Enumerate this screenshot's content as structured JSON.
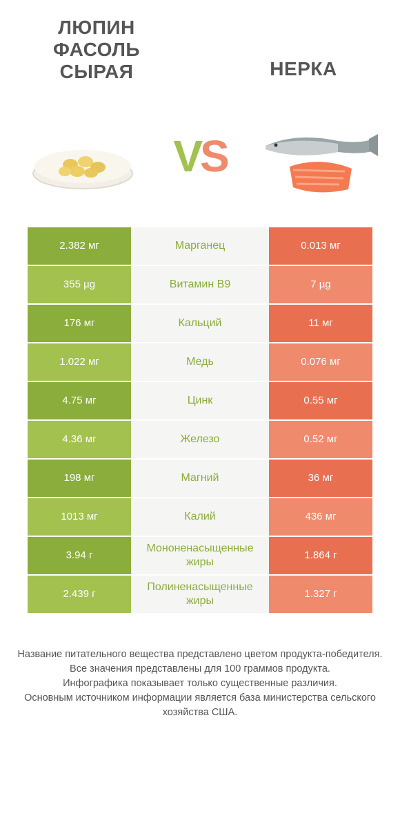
{
  "colors": {
    "green_dark": "#8aad3b",
    "green_light": "#a2c14f",
    "orange_dark": "#e96f51",
    "orange_light": "#ef8a6d",
    "mid_bg": "#f5f5f3",
    "mid_text_green": "#8aad3b",
    "vs_v": "#a2c14f",
    "vs_s": "#ef8a6d"
  },
  "header": {
    "left_title": "ЛЮПИН ФАСОЛЬ СЫРАЯ",
    "right_title": "НЕРКА",
    "vs_v": "V",
    "vs_s": "S"
  },
  "rows": [
    {
      "left": "2.382 мг",
      "mid": "Марганец",
      "right": "0.013 мг"
    },
    {
      "left": "355 µg",
      "mid": "Витамин B9",
      "right": "7 µg"
    },
    {
      "left": "176 мг",
      "mid": "Кальций",
      "right": "11 мг"
    },
    {
      "left": "1.022 мг",
      "mid": "Медь",
      "right": "0.076 мг"
    },
    {
      "left": "4.75 мг",
      "mid": "Цинк",
      "right": "0.55 мг"
    },
    {
      "left": "4.36 мг",
      "mid": "Железо",
      "right": "0.52 мг"
    },
    {
      "left": "198 мг",
      "mid": "Магний",
      "right": "36 мг"
    },
    {
      "left": "1013 мг",
      "mid": "Калий",
      "right": "436 мг"
    },
    {
      "left": "3.94 г",
      "mid": "Мононенасыщенные жиры",
      "right": "1.864 г"
    },
    {
      "left": "2.439 г",
      "mid": "Полиненасыщенные жиры",
      "right": "1.327 г"
    }
  ],
  "footer": {
    "line1": "Название питательного вещества представлено цветом продукта-победителя.",
    "line2": "Все значения представлены для 100 граммов продукта.",
    "line3": "Инфографика показывает только существенные различия.",
    "line4": "Основным источником информации является база министерства сельского хозяйства США."
  }
}
